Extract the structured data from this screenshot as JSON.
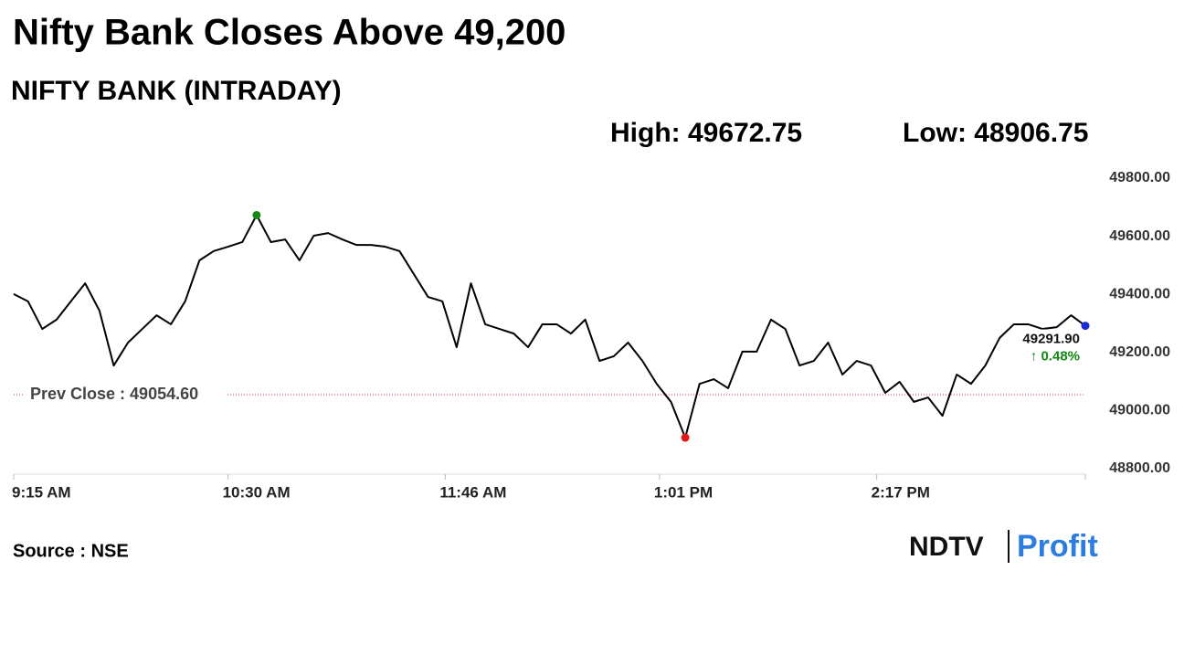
{
  "chart_data": {
    "type": "line",
    "title": "Nifty Bank Closes Above 49,200",
    "subtitle": "NIFTY BANK (INTRADAY)",
    "high_label": "High: 49672.75",
    "low_label": "Low: 48906.75",
    "source": "Source : NSE",
    "logo": [
      "NDTV",
      "Profit"
    ],
    "prev_close": 49054.6,
    "prev_close_label": "Prev Close : 49054.60",
    "last_label": "49291.90",
    "change_label": "↑ 0.48%",
    "x": [
      "9:15 AM",
      "9:20 AM",
      "9:25 AM",
      "9:30 AM",
      "9:35 AM",
      "9:40 AM",
      "9:45 AM",
      "9:50 AM",
      "9:55 AM",
      "10:00 AM",
      "10:05 AM",
      "10:10 AM",
      "10:15 AM",
      "10:20 AM",
      "10:25 AM",
      "10:30 AM",
      "10:35 AM",
      "10:40 AM",
      "10:45 AM",
      "10:50 AM",
      "10:55 AM",
      "11:00 AM",
      "11:05 AM",
      "11:10 AM",
      "11:15 AM",
      "11:20 AM",
      "11:25 AM",
      "11:30 AM",
      "11:35 AM",
      "11:40 AM",
      "11:45 AM",
      "11:50 AM",
      "11:55 AM",
      "12:00 PM",
      "12:05 PM",
      "12:10 PM",
      "12:15 PM",
      "12:20 PM",
      "12:25 PM",
      "12:30 PM",
      "12:35 PM",
      "12:40 PM",
      "12:45 PM",
      "12:50 PM",
      "12:55 PM",
      "1:00 PM",
      "1:05 PM",
      "1:10 PM",
      "1:15 PM",
      "1:20 PM",
      "1:25 PM",
      "1:30 PM",
      "1:35 PM",
      "1:40 PM",
      "1:45 PM",
      "1:50 PM",
      "1:55 PM",
      "2:00 PM",
      "2:05 PM",
      "2:10 PM",
      "2:15 PM",
      "2:20 PM",
      "2:25 PM",
      "2:30 PM",
      "2:35 PM",
      "2:40 PM",
      "2:45 PM",
      "2:50 PM",
      "2:55 PM",
      "3:00 PM",
      "3:05 PM",
      "3:10 PM",
      "3:15 PM",
      "3:20 PM",
      "3:25 PM",
      "3:30 PM"
    ],
    "series": [
      {
        "name": "NIFTY BANK",
        "color": "#000000",
        "values": [
          49401,
          49376,
          49281,
          49313,
          49376,
          49438,
          49344,
          49155,
          49234,
          49281,
          49328,
          49297,
          49376,
          49517,
          49549,
          49564,
          49580,
          49672.75,
          49580,
          49589,
          49517,
          49602,
          49611,
          49589,
          49570,
          49570,
          49564,
          49549,
          49470,
          49391,
          49376,
          49218,
          49438,
          49297,
          49281,
          49265,
          49218,
          49297,
          49297,
          49265,
          49313,
          49171,
          49187,
          49234,
          49171,
          49092,
          49030,
          48906.75,
          49092,
          49108,
          49077,
          49203,
          49203,
          49313,
          49281,
          49155,
          49171,
          49234,
          49124,
          49171,
          49155,
          49061,
          49099,
          49030,
          49045,
          48982,
          49124,
          49092,
          49155,
          49250,
          49297,
          49297,
          49281,
          49287,
          49328,
          49291.9
        ]
      }
    ],
    "xlim": [
      "9:15 AM",
      "3:30 PM"
    ],
    "xticks": [
      "9:15 AM",
      "10:30 AM",
      "11:46 AM",
      "1:01 PM",
      "2:17 PM"
    ],
    "ylim": [
      48800,
      49800
    ],
    "yticks": [
      {
        "value": 48800,
        "label": "48800.00"
      },
      {
        "value": 49000,
        "label": "49000.00"
      },
      {
        "value": 49200,
        "label": "49200.00"
      },
      {
        "value": 49400,
        "label": "49400.00"
      },
      {
        "value": 49600,
        "label": "49600.00"
      },
      {
        "value": 49800,
        "label": "49800.00"
      }
    ],
    "high_color": "#138a13",
    "low_color": "#e01818",
    "last_color": "#1c2bd6",
    "change_color": "#138a13",
    "prev_close_color": "#c0392b"
  }
}
